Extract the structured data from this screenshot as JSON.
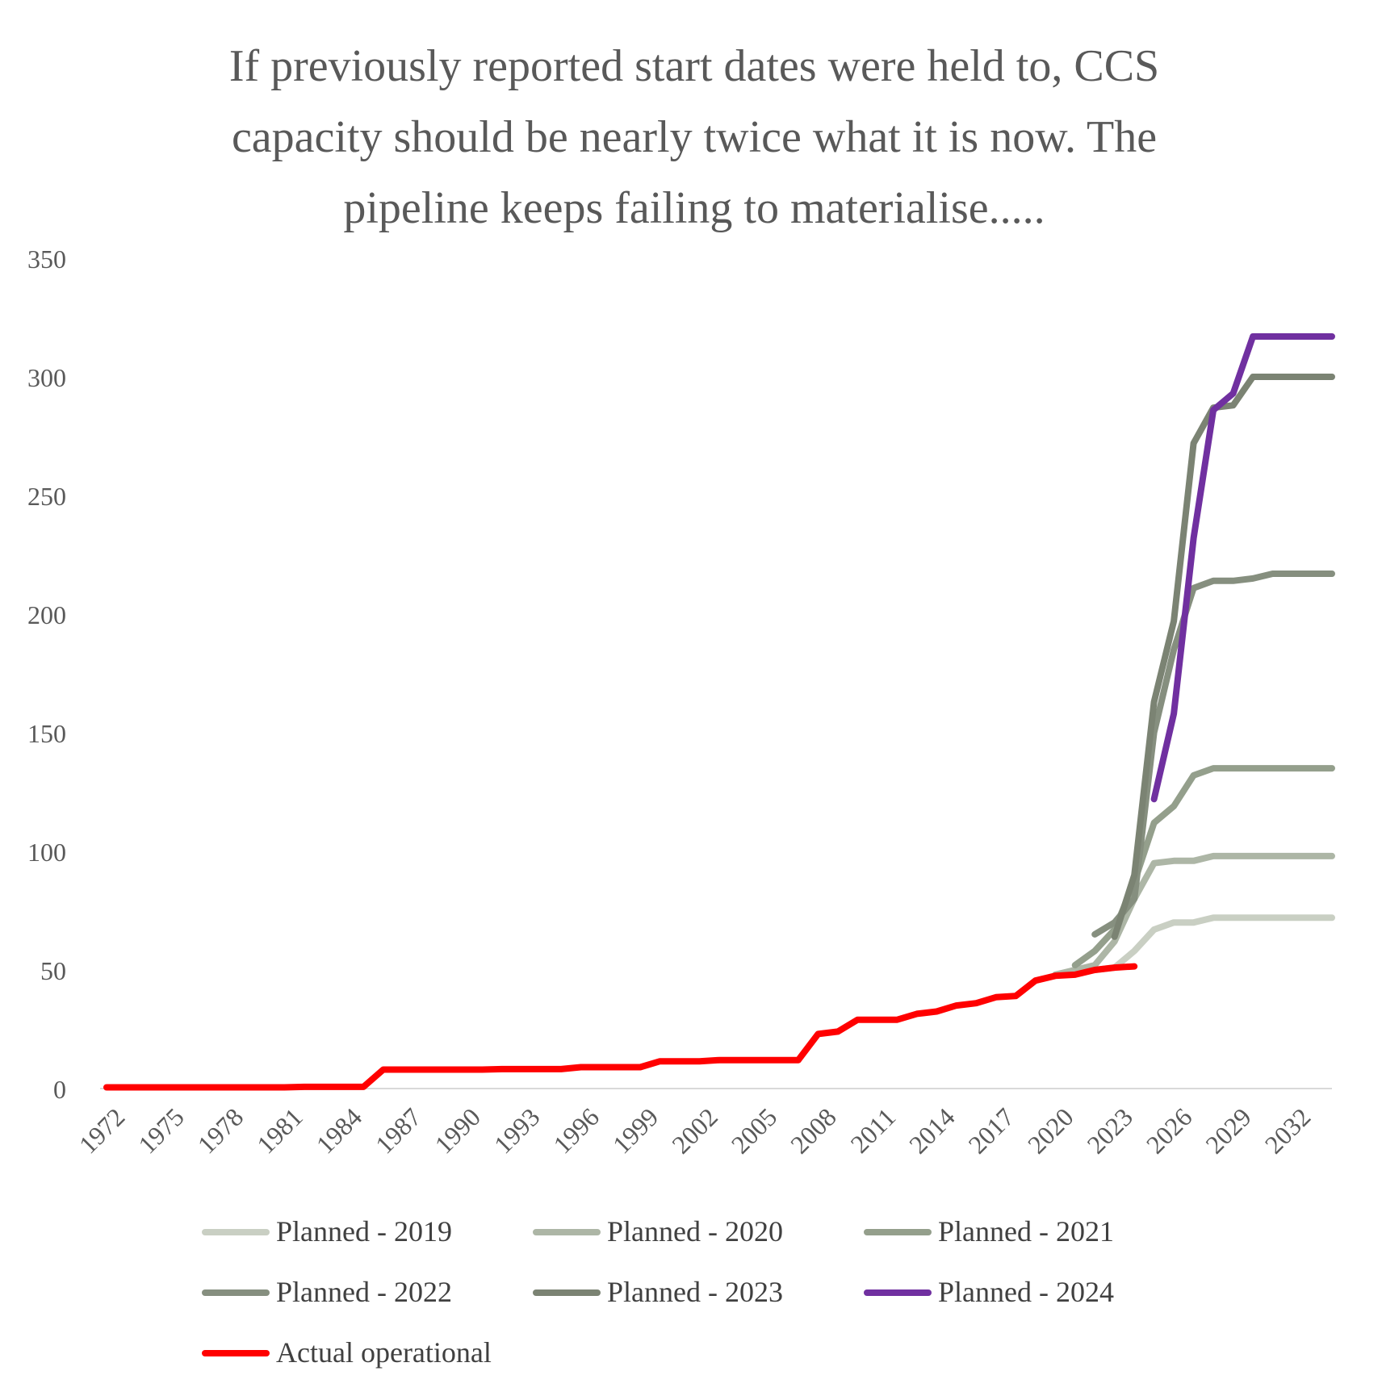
{
  "chart_data": {
    "type": "line",
    "title_lines": [
      "If previously reported start dates were held to, CCS",
      "capacity should be nearly twice what it is now. The",
      "pipeline keeps failing to materialise....."
    ],
    "xlabel": "",
    "ylabel": "",
    "xlim": [
      1972,
      2034
    ],
    "ylim": [
      0,
      350
    ],
    "y_ticks": [
      0,
      50,
      100,
      150,
      200,
      250,
      300,
      350
    ],
    "y_tick_labels": [
      "0",
      "50",
      "100",
      "150",
      "200",
      "250",
      "300",
      "350"
    ],
    "x_ticks": [
      1972,
      1975,
      1978,
      1981,
      1984,
      1987,
      1990,
      1993,
      1996,
      1999,
      2002,
      2005,
      2008,
      2011,
      2014,
      2017,
      2020,
      2023,
      2026,
      2029,
      2032
    ],
    "x_tick_labels": [
      "1972",
      "1975",
      "1978",
      "1981",
      "1984",
      "1987",
      "1990",
      "1993",
      "1996",
      "1999",
      "2002",
      "2005",
      "2008",
      "2011",
      "2014",
      "2017",
      "2020",
      "2023",
      "2026",
      "2029",
      "2032"
    ],
    "grid": false,
    "legend_position": "bottom",
    "series": [
      {
        "name": "Planned - 2019",
        "color": "#c9cfc3",
        "x": [
          2021,
          2022,
          2023,
          2024,
          2025,
          2026,
          2027,
          2028,
          2029,
          2030,
          2031,
          2032,
          2033,
          2034
        ],
        "values": [
          49,
          50,
          51,
          58,
          67,
          70,
          70,
          72,
          72,
          72,
          72,
          72,
          72,
          72
        ]
      },
      {
        "name": "Planned - 2020",
        "color": "#adb6a6",
        "x": [
          2020,
          2021,
          2022,
          2023,
          2024,
          2025,
          2026,
          2027,
          2028,
          2029,
          2030,
          2031,
          2032,
          2033,
          2034
        ],
        "values": [
          48,
          50,
          52,
          62,
          80,
          95,
          96,
          96,
          98,
          98,
          98,
          98,
          98,
          98,
          98
        ]
      },
      {
        "name": "Planned - 2021",
        "color": "#949f8c",
        "x": [
          2021,
          2022,
          2023,
          2024,
          2025,
          2026,
          2027,
          2028,
          2029,
          2030,
          2031,
          2032,
          2033,
          2034
        ],
        "values": [
          52,
          58,
          67,
          87,
          112,
          119,
          132,
          135,
          135,
          135,
          135,
          135,
          135,
          135
        ]
      },
      {
        "name": "Planned - 2022",
        "color": "#868f7f",
        "x": [
          2022,
          2023,
          2024,
          2025,
          2026,
          2027,
          2028,
          2029,
          2030,
          2031,
          2032,
          2033,
          2034
        ],
        "values": [
          65,
          70,
          80,
          150,
          185,
          211,
          214,
          214,
          215,
          217,
          217,
          217,
          217
        ]
      },
      {
        "name": "Planned - 2023",
        "color": "#7b8373",
        "x": [
          2023,
          2024,
          2025,
          2026,
          2027,
          2028,
          2029,
          2030,
          2031,
          2032,
          2033,
          2034
        ],
        "values": [
          64,
          90,
          163,
          197,
          272,
          287,
          288,
          300,
          300,
          300,
          300,
          300
        ]
      },
      {
        "name": "Planned - 2024",
        "color": "#7030a0",
        "x": [
          2025,
          2026,
          2027,
          2028,
          2029,
          2030,
          2031,
          2032,
          2033,
          2034
        ],
        "values": [
          122,
          158,
          232,
          286,
          293,
          317,
          317,
          317,
          317,
          317
        ]
      },
      {
        "name": "Actual operational",
        "color": "#ff0000",
        "x": [
          1972,
          1973,
          1974,
          1975,
          1976,
          1977,
          1978,
          1979,
          1980,
          1981,
          1982,
          1983,
          1984,
          1985,
          1986,
          1987,
          1988,
          1989,
          1990,
          1991,
          1992,
          1993,
          1994,
          1995,
          1996,
          1997,
          1998,
          1999,
          2000,
          2001,
          2002,
          2003,
          2004,
          2005,
          2006,
          2007,
          2008,
          2009,
          2010,
          2011,
          2012,
          2013,
          2014,
          2015,
          2016,
          2017,
          2018,
          2019,
          2020,
          2021,
          2022,
          2023,
          2024
        ],
        "values": [
          0.5,
          0.5,
          0.5,
          0.5,
          0.5,
          0.5,
          0.5,
          0.5,
          0.5,
          0.5,
          0.7,
          0.7,
          0.7,
          0.7,
          8,
          8,
          8,
          8,
          8,
          8,
          8.2,
          8.2,
          8.2,
          8.2,
          9,
          9,
          9,
          9,
          11.5,
          11.5,
          11.5,
          12,
          12,
          12,
          12,
          12,
          23,
          24,
          29,
          29,
          29,
          31.5,
          32.5,
          35,
          36,
          38.5,
          39,
          45.5,
          47.5,
          48,
          50,
          51,
          51.5
        ]
      }
    ]
  }
}
